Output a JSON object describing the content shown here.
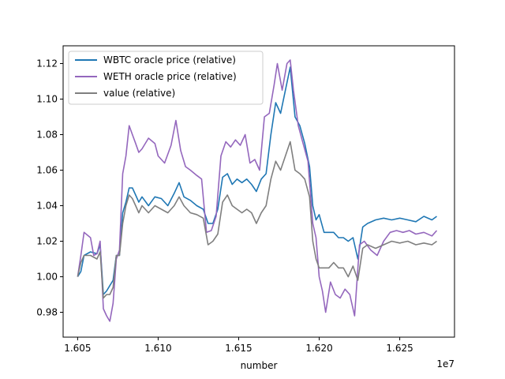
{
  "chart_data": {
    "type": "line",
    "xlabel": "number",
    "x_offset_label": "1e7",
    "xlim": [
      1.6041,
      1.6284
    ],
    "ylim": [
      0.966,
      1.13
    ],
    "x_ticks": [
      1.605,
      1.61,
      1.615,
      1.62,
      1.625
    ],
    "x_tick_labels": [
      "1.605",
      "1.610",
      "1.615",
      "1.620",
      "1.625"
    ],
    "y_ticks": [
      0.98,
      1.0,
      1.02,
      1.04,
      1.06,
      1.08,
      1.1,
      1.12
    ],
    "y_tick_labels": [
      "0.98",
      "1.00",
      "1.02",
      "1.04",
      "1.06",
      "1.08",
      "1.10",
      "1.12"
    ],
    "legend_position": "top-left",
    "grid": false,
    "series": [
      {
        "name": "WBTC oracle price (relative)",
        "color": "#1f77b4",
        "points": [
          [
            1.605,
            1.0
          ],
          [
            1.6052,
            1.003
          ],
          [
            1.6054,
            1.012
          ],
          [
            1.6058,
            1.014
          ],
          [
            1.6062,
            1.013
          ],
          [
            1.6064,
            1.018
          ],
          [
            1.6066,
            0.99
          ],
          [
            1.6068,
            0.992
          ],
          [
            1.607,
            0.995
          ],
          [
            1.6072,
            0.998
          ],
          [
            1.6074,
            1.012
          ],
          [
            1.6076,
            1.012
          ],
          [
            1.6078,
            1.036
          ],
          [
            1.608,
            1.042
          ],
          [
            1.6082,
            1.05
          ],
          [
            1.6084,
            1.05
          ],
          [
            1.6086,
            1.046
          ],
          [
            1.6088,
            1.042
          ],
          [
            1.609,
            1.045
          ],
          [
            1.6094,
            1.04
          ],
          [
            1.6098,
            1.045
          ],
          [
            1.6102,
            1.044
          ],
          [
            1.6106,
            1.04
          ],
          [
            1.611,
            1.047
          ],
          [
            1.6113,
            1.053
          ],
          [
            1.6116,
            1.045
          ],
          [
            1.612,
            1.043
          ],
          [
            1.6124,
            1.04
          ],
          [
            1.6128,
            1.038
          ],
          [
            1.6131,
            1.03
          ],
          [
            1.6134,
            1.03
          ],
          [
            1.6137,
            1.038
          ],
          [
            1.614,
            1.056
          ],
          [
            1.6143,
            1.058
          ],
          [
            1.6146,
            1.052
          ],
          [
            1.6149,
            1.055
          ],
          [
            1.6152,
            1.053
          ],
          [
            1.6155,
            1.055
          ],
          [
            1.6158,
            1.052
          ],
          [
            1.6161,
            1.048
          ],
          [
            1.6164,
            1.055
          ],
          [
            1.6167,
            1.058
          ],
          [
            1.617,
            1.08
          ],
          [
            1.6173,
            1.098
          ],
          [
            1.6176,
            1.092
          ],
          [
            1.6179,
            1.105
          ],
          [
            1.6182,
            1.118
          ],
          [
            1.6185,
            1.09
          ],
          [
            1.6188,
            1.085
          ],
          [
            1.6191,
            1.075
          ],
          [
            1.6194,
            1.062
          ],
          [
            1.6196,
            1.04
          ],
          [
            1.6198,
            1.032
          ],
          [
            1.62,
            1.035
          ],
          [
            1.6203,
            1.025
          ],
          [
            1.6206,
            1.025
          ],
          [
            1.6209,
            1.025
          ],
          [
            1.6212,
            1.022
          ],
          [
            1.6215,
            1.022
          ],
          [
            1.6218,
            1.02
          ],
          [
            1.6221,
            1.022
          ],
          [
            1.6224,
            1.01
          ],
          [
            1.6227,
            1.028
          ],
          [
            1.623,
            1.03
          ],
          [
            1.6235,
            1.032
          ],
          [
            1.624,
            1.033
          ],
          [
            1.6245,
            1.032
          ],
          [
            1.625,
            1.033
          ],
          [
            1.6255,
            1.032
          ],
          [
            1.626,
            1.031
          ],
          [
            1.6265,
            1.034
          ],
          [
            1.627,
            1.032
          ],
          [
            1.6273,
            1.034
          ]
        ]
      },
      {
        "name": "WETH oracle price (relative)",
        "color": "#9467bd",
        "points": [
          [
            1.605,
            1.0
          ],
          [
            1.6052,
            1.012
          ],
          [
            1.6054,
            1.025
          ],
          [
            1.6058,
            1.022
          ],
          [
            1.606,
            1.012
          ],
          [
            1.6062,
            1.013
          ],
          [
            1.6064,
            1.02
          ],
          [
            1.6066,
            0.982
          ],
          [
            1.6068,
            0.978
          ],
          [
            1.607,
            0.975
          ],
          [
            1.6072,
            0.985
          ],
          [
            1.6074,
            1.01
          ],
          [
            1.6076,
            1.015
          ],
          [
            1.6078,
            1.058
          ],
          [
            1.608,
            1.068
          ],
          [
            1.6082,
            1.085
          ],
          [
            1.6084,
            1.08
          ],
          [
            1.6086,
            1.075
          ],
          [
            1.6088,
            1.07
          ],
          [
            1.609,
            1.072
          ],
          [
            1.6094,
            1.078
          ],
          [
            1.6098,
            1.075
          ],
          [
            1.61,
            1.068
          ],
          [
            1.6104,
            1.064
          ],
          [
            1.6108,
            1.074
          ],
          [
            1.6111,
            1.088
          ],
          [
            1.6114,
            1.071
          ],
          [
            1.6117,
            1.062
          ],
          [
            1.612,
            1.06
          ],
          [
            1.6124,
            1.057
          ],
          [
            1.6127,
            1.055
          ],
          [
            1.613,
            1.025
          ],
          [
            1.6133,
            1.026
          ],
          [
            1.6136,
            1.034
          ],
          [
            1.6139,
            1.068
          ],
          [
            1.6142,
            1.076
          ],
          [
            1.6145,
            1.073
          ],
          [
            1.6148,
            1.077
          ],
          [
            1.6151,
            1.074
          ],
          [
            1.6154,
            1.08
          ],
          [
            1.6157,
            1.064
          ],
          [
            1.616,
            1.066
          ],
          [
            1.6163,
            1.06
          ],
          [
            1.6166,
            1.09
          ],
          [
            1.6169,
            1.092
          ],
          [
            1.6172,
            1.108
          ],
          [
            1.6174,
            1.12
          ],
          [
            1.6177,
            1.105
          ],
          [
            1.618,
            1.12
          ],
          [
            1.6182,
            1.122
          ],
          [
            1.6184,
            1.105
          ],
          [
            1.6187,
            1.085
          ],
          [
            1.619,
            1.075
          ],
          [
            1.6193,
            1.065
          ],
          [
            1.6196,
            1.03
          ],
          [
            1.6198,
            1.022
          ],
          [
            1.62,
            1.0
          ],
          [
            1.6202,
            0.992
          ],
          [
            1.6204,
            0.98
          ],
          [
            1.6207,
            0.997
          ],
          [
            1.621,
            0.99
          ],
          [
            1.6213,
            0.988
          ],
          [
            1.6216,
            0.993
          ],
          [
            1.6219,
            0.99
          ],
          [
            1.6222,
            0.978
          ],
          [
            1.6225,
            1.018
          ],
          [
            1.6228,
            1.02
          ],
          [
            1.6232,
            1.015
          ],
          [
            1.6236,
            1.012
          ],
          [
            1.624,
            1.02
          ],
          [
            1.6244,
            1.025
          ],
          [
            1.6248,
            1.026
          ],
          [
            1.6252,
            1.025
          ],
          [
            1.6256,
            1.026
          ],
          [
            1.626,
            1.024
          ],
          [
            1.6265,
            1.025
          ],
          [
            1.627,
            1.023
          ],
          [
            1.6273,
            1.026
          ]
        ]
      },
      {
        "name": "value (relative)",
        "color": "#7f7f7f",
        "points": [
          [
            1.605,
            1.0
          ],
          [
            1.6052,
            1.008
          ],
          [
            1.6054,
            1.012
          ],
          [
            1.6058,
            1.012
          ],
          [
            1.6062,
            1.01
          ],
          [
            1.6064,
            1.014
          ],
          [
            1.6066,
            0.988
          ],
          [
            1.6068,
            0.99
          ],
          [
            1.607,
            0.99
          ],
          [
            1.6072,
            0.994
          ],
          [
            1.6074,
            1.012
          ],
          [
            1.6076,
            1.012
          ],
          [
            1.6078,
            1.03
          ],
          [
            1.608,
            1.04
          ],
          [
            1.6082,
            1.046
          ],
          [
            1.6084,
            1.044
          ],
          [
            1.6086,
            1.04
          ],
          [
            1.6088,
            1.036
          ],
          [
            1.609,
            1.04
          ],
          [
            1.6094,
            1.036
          ],
          [
            1.6098,
            1.04
          ],
          [
            1.6102,
            1.038
          ],
          [
            1.6106,
            1.036
          ],
          [
            1.611,
            1.04
          ],
          [
            1.6113,
            1.045
          ],
          [
            1.6116,
            1.04
          ],
          [
            1.612,
            1.036
          ],
          [
            1.6124,
            1.035
          ],
          [
            1.6128,
            1.033
          ],
          [
            1.6131,
            1.018
          ],
          [
            1.6134,
            1.02
          ],
          [
            1.6137,
            1.024
          ],
          [
            1.614,
            1.042
          ],
          [
            1.6143,
            1.046
          ],
          [
            1.6146,
            1.04
          ],
          [
            1.6149,
            1.038
          ],
          [
            1.6152,
            1.036
          ],
          [
            1.6155,
            1.038
          ],
          [
            1.6158,
            1.036
          ],
          [
            1.6161,
            1.03
          ],
          [
            1.6164,
            1.036
          ],
          [
            1.6167,
            1.04
          ],
          [
            1.617,
            1.055
          ],
          [
            1.6173,
            1.065
          ],
          [
            1.6176,
            1.06
          ],
          [
            1.6179,
            1.068
          ],
          [
            1.6182,
            1.076
          ],
          [
            1.6185,
            1.06
          ],
          [
            1.6188,
            1.058
          ],
          [
            1.6191,
            1.055
          ],
          [
            1.6194,
            1.045
          ],
          [
            1.6196,
            1.02
          ],
          [
            1.6198,
            1.01
          ],
          [
            1.62,
            1.005
          ],
          [
            1.6203,
            1.005
          ],
          [
            1.6206,
            1.005
          ],
          [
            1.6209,
            1.008
          ],
          [
            1.6212,
            1.005
          ],
          [
            1.6215,
            1.005
          ],
          [
            1.6218,
            1.0
          ],
          [
            1.6221,
            1.006
          ],
          [
            1.6224,
            0.998
          ],
          [
            1.6227,
            1.016
          ],
          [
            1.623,
            1.018
          ],
          [
            1.6235,
            1.016
          ],
          [
            1.624,
            1.018
          ],
          [
            1.6245,
            1.02
          ],
          [
            1.625,
            1.019
          ],
          [
            1.6255,
            1.02
          ],
          [
            1.626,
            1.018
          ],
          [
            1.6265,
            1.019
          ],
          [
            1.627,
            1.018
          ],
          [
            1.6273,
            1.02
          ]
        ]
      }
    ]
  }
}
